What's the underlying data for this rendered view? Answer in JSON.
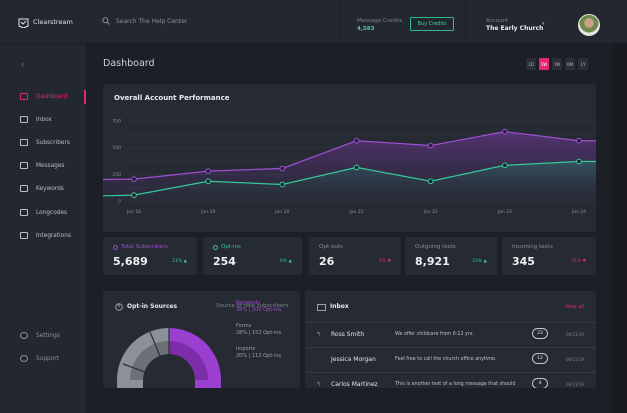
{
  "app": {
    "name": "Clearstream"
  },
  "search": {
    "placeholder": "Search The Help Center"
  },
  "credits": {
    "label": "Message Credits",
    "value": "4,583",
    "buy_label": "Buy Credits"
  },
  "account": {
    "label": "Account",
    "name": "The Early Church"
  },
  "sidebar": {
    "items": [
      {
        "label": "Dashboard",
        "icon": "dashboard-icon",
        "active": true
      },
      {
        "label": "Inbox",
        "icon": "inbox-icon"
      },
      {
        "label": "Subscribers",
        "icon": "subscribers-icon"
      },
      {
        "label": "Messages",
        "icon": "messages-icon"
      },
      {
        "label": "Keywords",
        "icon": "key-icon"
      },
      {
        "label": "Longcodes",
        "icon": "phone-icon"
      },
      {
        "label": "Integrations",
        "icon": "integrations-icon"
      }
    ],
    "footer": [
      {
        "label": "Settings",
        "icon": "gear-icon"
      },
      {
        "label": "Support",
        "icon": "support-icon"
      }
    ]
  },
  "page": {
    "title": "Dashboard"
  },
  "ranges": [
    {
      "label": "1D"
    },
    {
      "label": "1W",
      "active": true
    },
    {
      "label": "1M"
    },
    {
      "label": "6M"
    },
    {
      "label": "1Y"
    }
  ],
  "performance": {
    "title": "Overall Account Performance"
  },
  "chart_data": {
    "type": "area",
    "title": "Overall Account Performance",
    "categories": [
      "Jan 18",
      "Jan 19",
      "Jan 20",
      "Jan 21",
      "Jan 22",
      "Jan 23",
      "Jan 24"
    ],
    "yticks": [
      "750",
      "500",
      "250",
      "0"
    ],
    "ylim": [
      0,
      750
    ],
    "grid": true,
    "series": [
      {
        "name": "Total Subscribers",
        "color": "#a04fd6",
        "values": [
          205,
          280,
          305,
          565,
          520,
          650,
          565
        ]
      },
      {
        "name": "Opt-ins",
        "color": "#35c99a",
        "values": [
          55,
          185,
          155,
          315,
          185,
          335,
          370
        ]
      }
    ]
  },
  "stats": [
    {
      "label": "Total Subscribers",
      "value": "5,689",
      "change": "21% ▲",
      "change_color": "#35c99a",
      "marker_color": "#a04fd6"
    },
    {
      "label": "Opt-ins",
      "value": "254",
      "change": "6% ▲",
      "change_color": "#35c99a",
      "marker_color": "#35c99a"
    },
    {
      "label": "Opt-outs",
      "value": "26",
      "change": "4% ▼",
      "change_color": "#e2266f"
    },
    {
      "label": "Outgoing texts",
      "value": "8,921",
      "change": "33% ▲",
      "change_color": "#35c99a"
    },
    {
      "label": "Incoming texts",
      "value": "345",
      "change": "31% ▼",
      "change_color": "#e2266f"
    }
  ],
  "optin": {
    "title": "Opt-in Sources",
    "subtitle": "Source of new subscribers",
    "sources": [
      {
        "name": "Keywords",
        "detail": "38% | 200 Opt-ins",
        "color": "#a04fd6"
      },
      {
        "name": "Forms",
        "detail": "28% | 152 Opt-ins",
        "color": "#8a8e96"
      },
      {
        "name": "Imports",
        "detail": "20% | 112 Opt-ins",
        "color": "#8a8e96"
      }
    ]
  },
  "inbox": {
    "title": "Inbox",
    "view_all": "View all",
    "rows": [
      {
        "name": "Ross Smith",
        "message": "We offer childcare from 0-12 yrs.",
        "count": "23",
        "date": "06/11/19",
        "replied": true
      },
      {
        "name": "Jessica Morgan",
        "message": "Feel free to call the church office anytime.",
        "count": "12",
        "date": "06/11/19",
        "replied": false
      },
      {
        "name": "Carlos Martinez",
        "message": "This is another test of a long message that should",
        "count": "4",
        "date": "06/11/19",
        "replied": true
      }
    ]
  }
}
